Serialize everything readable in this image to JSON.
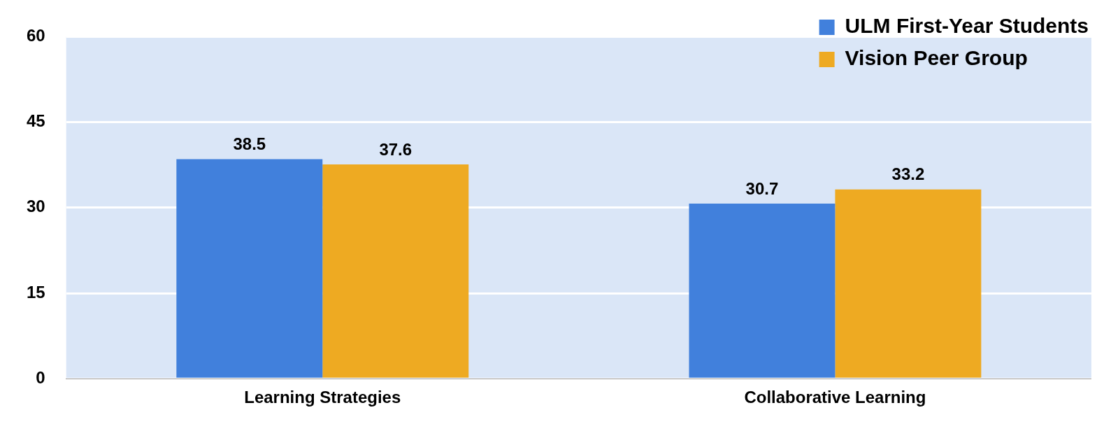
{
  "chart_data": {
    "type": "bar",
    "categories": [
      "Learning Strategies",
      "Collaborative Learning"
    ],
    "series": [
      {
        "name": "ULM First-Year Students",
        "color": "#4180dc",
        "values": [
          38.5,
          30.7
        ]
      },
      {
        "name": "Vision Peer Group",
        "color": "#eeaa22",
        "values": [
          37.6,
          33.2
        ]
      }
    ],
    "ylim": [
      0,
      60
    ],
    "yticks": [
      0,
      15,
      30,
      45,
      60
    ],
    "grid": "y",
    "legend": "top right",
    "data_labels": true
  }
}
